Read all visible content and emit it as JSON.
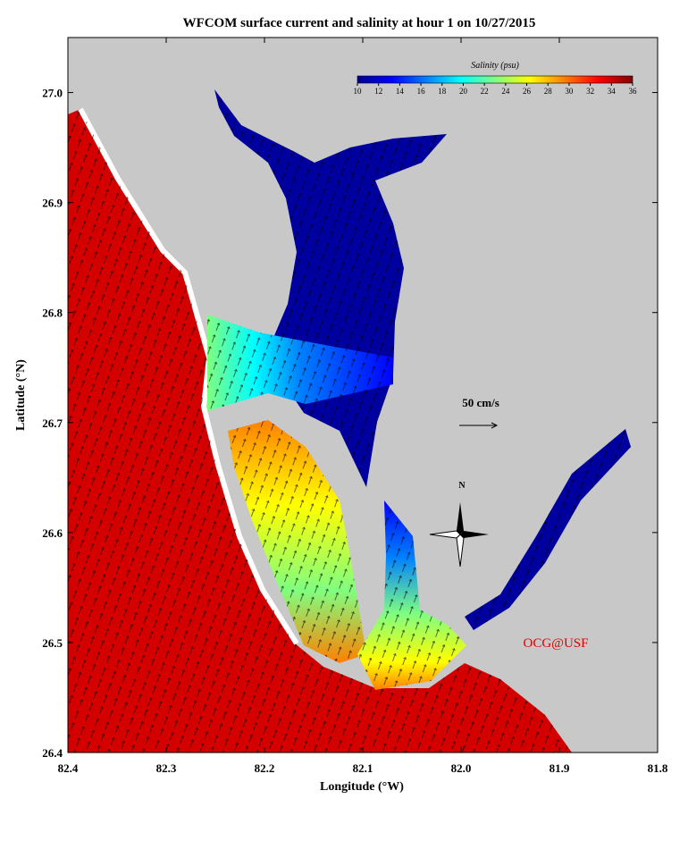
{
  "title": "WFCOM surface current and salinity at hour 1 on 10/27/2015",
  "x_label": "Longitude (°W)",
  "y_label": "Latitude (°N)",
  "xlim": [
    82.4,
    81.8
  ],
  "xticks": [
    82.4,
    82.3,
    82.2,
    82.1,
    {
      "value": 82,
      "label": "82.0"
    },
    81.9,
    81.8
  ],
  "ylim": [
    26.4,
    27.05
  ],
  "yticks": [
    26.4,
    26.5,
    26.6,
    26.7,
    26.8,
    26.9,
    {
      "value": 27,
      "label": "27.0"
    }
  ],
  "colorbar": {
    "label": "Salinity (psu)",
    "range": [
      10,
      36
    ],
    "ticks": [
      10,
      12,
      14,
      16,
      18,
      20,
      22,
      24,
      26,
      28,
      30,
      32,
      34,
      36
    ],
    "colors": [
      "#00008f",
      "#0000ff",
      "#0080ff",
      "#00ffff",
      "#80ff80",
      "#ffff00",
      "#ff8000",
      "#ff0000",
      "#800000"
    ]
  },
  "annotations": {
    "scale": "50 cm/s",
    "compass": "N",
    "credit": "OCG@USF"
  }
}
